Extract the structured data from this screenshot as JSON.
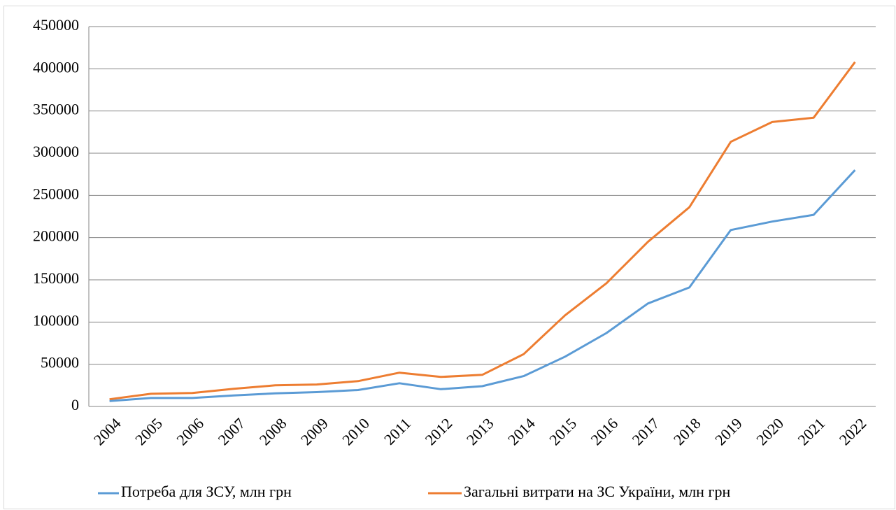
{
  "chart_data": {
    "type": "line",
    "categories": [
      "2004",
      "2005",
      "2006",
      "2007",
      "2008",
      "2009",
      "2010",
      "2011",
      "2012",
      "2013",
      "2014",
      "2015",
      "2016",
      "2017",
      "2018",
      "2019",
      "2020",
      "2021",
      "2022"
    ],
    "series": [
      {
        "name": "Потреба для ЗСУ, млн грн",
        "color": "#5b9bd5",
        "values": [
          6500,
          10000,
          10000,
          13000,
          15500,
          17000,
          19500,
          27500,
          20500,
          24000,
          36000,
          59000,
          87000,
          122000,
          141000,
          209000,
          219000,
          227000,
          280000
        ]
      },
      {
        "name": "Загальні витрати на ЗС України, млн грн",
        "color": "#ed7d31",
        "values": [
          8500,
          15000,
          16000,
          21000,
          25000,
          26000,
          30000,
          40000,
          35000,
          37500,
          62000,
          108000,
          146000,
          195000,
          236000,
          313500,
          337000,
          342000,
          408000
        ]
      }
    ],
    "ylim": [
      0,
      450000
    ],
    "yticks": [
      0,
      50000,
      100000,
      150000,
      200000,
      250000,
      300000,
      350000,
      400000,
      450000
    ],
    "grid": true,
    "legend": "bottom"
  }
}
